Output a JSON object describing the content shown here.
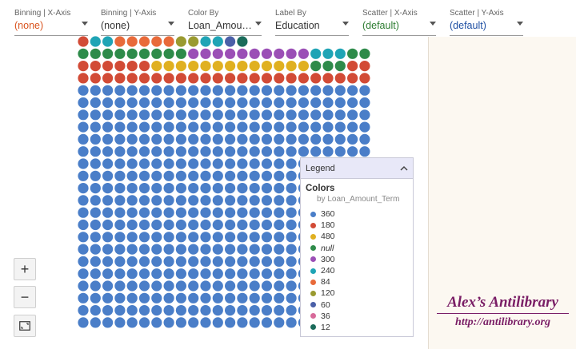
{
  "toolbar": {
    "binning_x": {
      "label": "Binning | X-Axis",
      "value": "(none)",
      "value_color": "#d9531e"
    },
    "binning_y": {
      "label": "Binning | Y-Axis",
      "value": "(none)",
      "value_color": "#333333"
    },
    "color_by": {
      "label": "Color By",
      "value": "Loan_Amoun...",
      "value_color": "#333333"
    },
    "label_by": {
      "label": "Label By",
      "value": "Education",
      "value_color": "#333333"
    },
    "scatter_x": {
      "label": "Scatter | X-Axis",
      "value": "(default)",
      "value_color": "#2e7d32"
    },
    "scatter_y": {
      "label": "Scatter | Y-Axis",
      "value": "(default)",
      "value_color": "#1e4fa3"
    }
  },
  "legend": {
    "header": "Legend",
    "title": "Colors",
    "subtitle": "by Loan_Amount_Term",
    "items": [
      {
        "label": "360",
        "color": "#4a7ec8",
        "italic": false
      },
      {
        "label": "180",
        "color": "#d24b36",
        "italic": false
      },
      {
        "label": "480",
        "color": "#e0b020",
        "italic": false
      },
      {
        "label": "null",
        "color": "#2e8b4a",
        "italic": true
      },
      {
        "label": "300",
        "color": "#9b4fb6",
        "italic": false
      },
      {
        "label": "240",
        "color": "#1fa4b5",
        "italic": false
      },
      {
        "label": "84",
        "color": "#e86a3a",
        "italic": false
      },
      {
        "label": "120",
        "color": "#9a9a30",
        "italic": false
      },
      {
        "label": "60",
        "color": "#4b60a8",
        "italic": false
      },
      {
        "label": "36",
        "color": "#d86a9a",
        "italic": false
      },
      {
        "label": "12",
        "color": "#1a6b5a",
        "italic": false
      }
    ]
  },
  "zoom": {
    "in": "+",
    "out": "−"
  },
  "watermark": {
    "title": "Alex’s Antilibrary",
    "url": "http://antilibrary.org"
  }
}
